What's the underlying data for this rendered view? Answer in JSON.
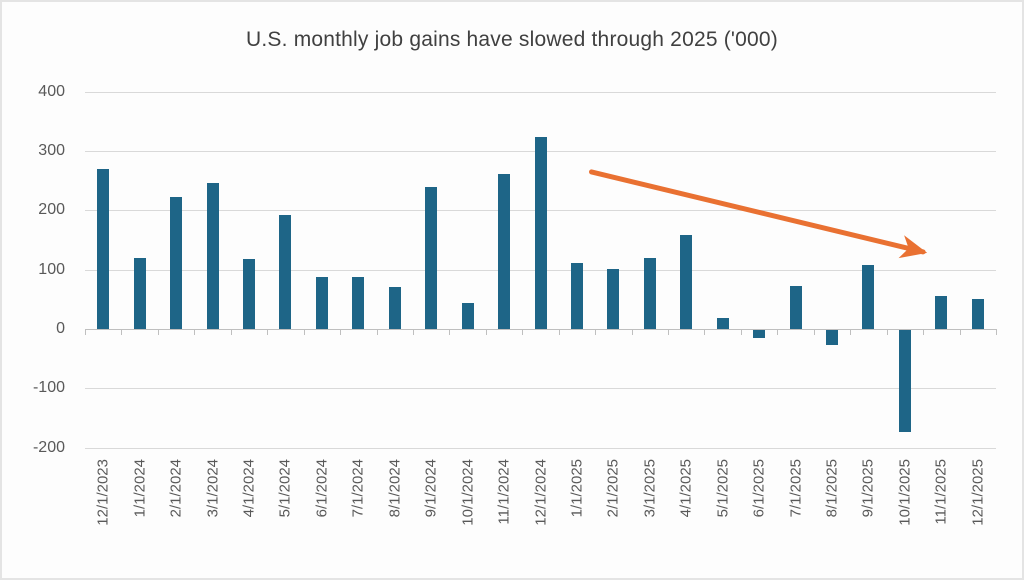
{
  "chart_data": {
    "type": "bar",
    "title": "U.S. monthly job gains have slowed through 2025 ('000)",
    "categories": [
      "12/1/2023",
      "1/1/2024",
      "2/1/2024",
      "3/1/2024",
      "4/1/2024",
      "5/1/2024",
      "6/1/2024",
      "7/1/2024",
      "8/1/2024",
      "9/1/2024",
      "10/1/2024",
      "11/1/2024",
      "12/1/2024",
      "1/1/2025",
      "2/1/2025",
      "3/1/2025",
      "4/1/2025",
      "5/1/2025",
      "6/1/2025",
      "7/1/2025",
      "8/1/2025",
      "9/1/2025",
      "10/1/2025",
      "11/1/2025",
      "12/1/2025"
    ],
    "values": [
      269,
      119,
      222,
      246,
      118,
      193,
      87,
      88,
      71,
      240,
      44,
      261,
      323,
      111,
      102,
      120,
      158,
      19,
      -13,
      72,
      -26,
      108,
      -172,
      56,
      50
    ],
    "xlabel": "",
    "ylabel": "",
    "ylim": [
      -200,
      400
    ],
    "yticks": [
      400,
      300,
      200,
      100,
      0,
      -100,
      -200
    ],
    "grid": "horizontal",
    "legend": "none",
    "bar_color": "#1e6587",
    "gridline_color": "#d9d9d9",
    "axis_color": "#bfbfbf",
    "tick_label_color": "#595959",
    "title_color": "#404040",
    "annotation": {
      "type": "arrow",
      "color": "#e97132",
      "from": {
        "category_index": 13.4,
        "value": 265
      },
      "to": {
        "category_index": 22.5,
        "value": 130
      }
    }
  }
}
